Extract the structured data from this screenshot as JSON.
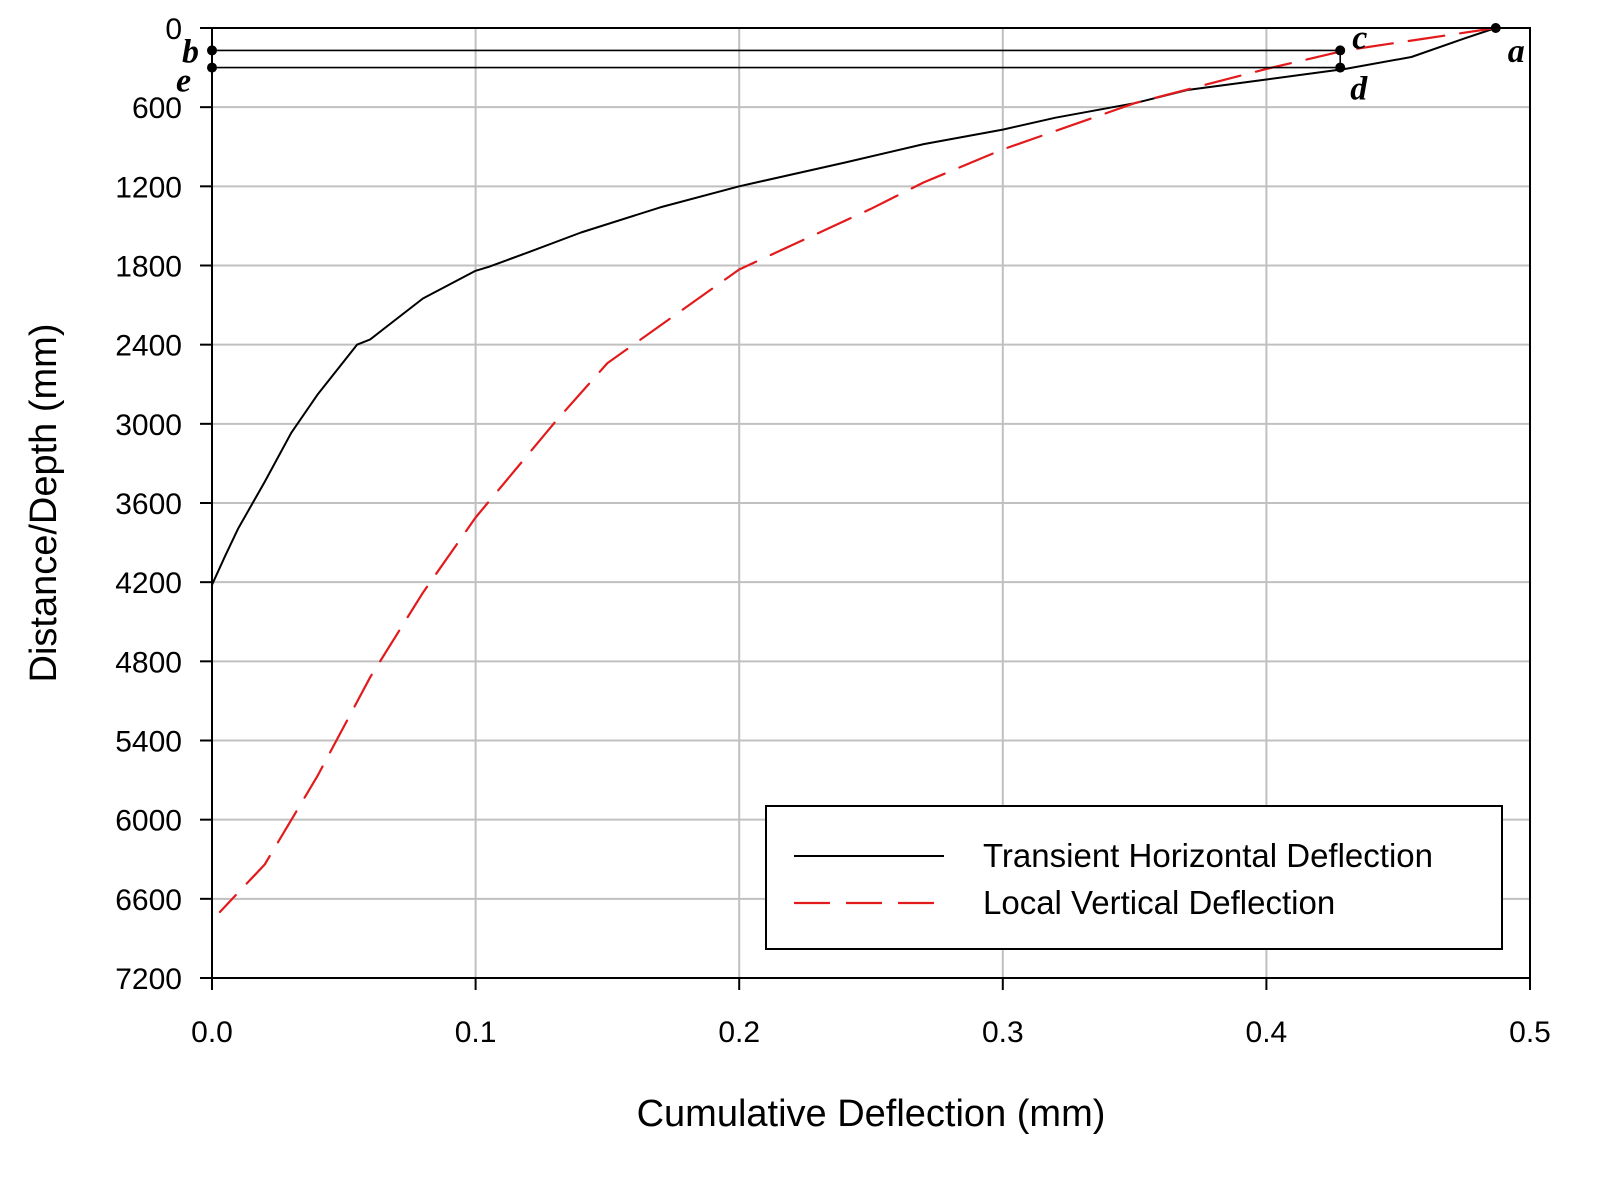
{
  "chart_data": {
    "type": "line",
    "xlabel": "Cumulative Deflection (mm)",
    "ylabel": "Distance/Depth (mm)",
    "xlim": [
      0,
      0.5
    ],
    "ylim": [
      0,
      7200
    ],
    "y_inverted": true,
    "grid": true,
    "legend_position": "bottom-right",
    "x_ticks": [
      "0.0",
      "0.1",
      "0.2",
      "0.3",
      "0.4",
      "0.5"
    ],
    "x_tick_values": [
      0,
      0.1,
      0.2,
      0.3,
      0.4,
      0.5
    ],
    "y_ticks": [
      "0",
      "600",
      "1200",
      "1800",
      "2400",
      "3000",
      "3600",
      "4200",
      "4800",
      "5400",
      "6000",
      "6600",
      "7200"
    ],
    "y_tick_values": [
      0,
      600,
      1200,
      1800,
      2400,
      3000,
      3600,
      4200,
      4800,
      5400,
      6000,
      6600,
      7200
    ],
    "series": [
      {
        "name": "Transient Horizontal Deflection",
        "color": "#000000",
        "dash": "solid",
        "points": [
          [
            0.487,
            0
          ],
          [
            0.475,
            80
          ],
          [
            0.455,
            220
          ],
          [
            0.43,
            310
          ],
          [
            0.4,
            390
          ],
          [
            0.37,
            470
          ],
          [
            0.35,
            570
          ],
          [
            0.32,
            680
          ],
          [
            0.3,
            770
          ],
          [
            0.27,
            880
          ],
          [
            0.24,
            1020
          ],
          [
            0.2,
            1200
          ],
          [
            0.17,
            1360
          ],
          [
            0.14,
            1550
          ],
          [
            0.12,
            1700
          ],
          [
            0.105,
            1810
          ],
          [
            0.1,
            1840
          ],
          [
            0.08,
            2050
          ],
          [
            0.06,
            2360
          ],
          [
            0.055,
            2400
          ],
          [
            0.04,
            2780
          ],
          [
            0.03,
            3070
          ],
          [
            0.02,
            3440
          ],
          [
            0.01,
            3790
          ],
          [
            0.005,
            4000
          ],
          [
            0.0,
            4220
          ]
        ]
      },
      {
        "name": "Local Vertical Deflection",
        "color": "#e31a1c",
        "dash": "dashed",
        "points": [
          [
            0.487,
            0
          ],
          [
            0.46,
            80
          ],
          [
            0.43,
            170
          ],
          [
            0.4,
            310
          ],
          [
            0.35,
            570
          ],
          [
            0.3,
            920
          ],
          [
            0.27,
            1170
          ],
          [
            0.25,
            1370
          ],
          [
            0.2,
            1830
          ],
          [
            0.15,
            2540
          ],
          [
            0.13,
            2990
          ],
          [
            0.1,
            3710
          ],
          [
            0.08,
            4280
          ],
          [
            0.06,
            4920
          ],
          [
            0.04,
            5670
          ],
          [
            0.02,
            6340
          ],
          [
            0.003,
            6700
          ]
        ]
      }
    ],
    "annotations": [
      {
        "label": "a",
        "x": 0.487,
        "y": 0
      },
      {
        "label": "b",
        "x": 0.0,
        "y": 170
      },
      {
        "label": "c",
        "x": 0.428,
        "y": 170
      },
      {
        "label": "d",
        "x": 0.428,
        "y": 300
      },
      {
        "label": "e",
        "x": 0.0,
        "y": 300
      }
    ],
    "reference_lines": [
      {
        "from": "b",
        "to": "c"
      },
      {
        "from": "e",
        "to": "d"
      },
      {
        "from": "c",
        "to": "d"
      }
    ]
  }
}
